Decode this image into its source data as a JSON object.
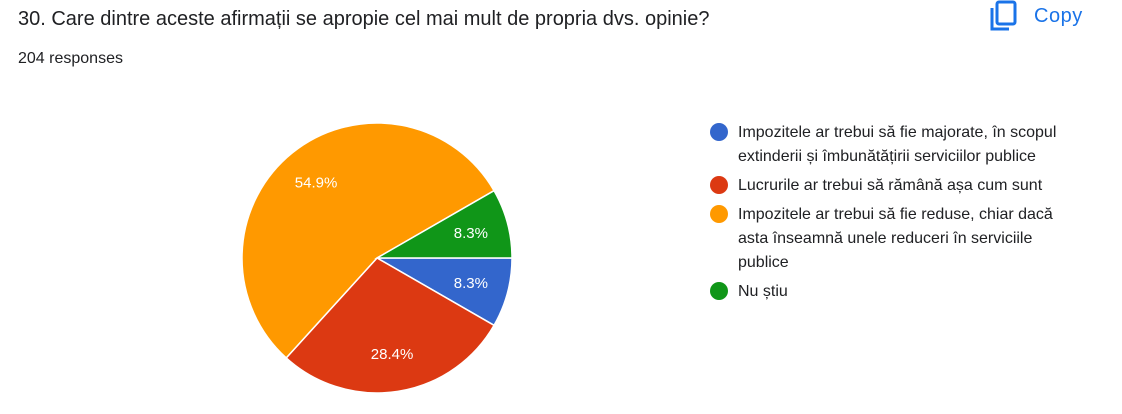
{
  "question": {
    "title": "30. Care dintre aceste afirmații se apropie cel mai mult de propria dvs. opinie?",
    "responses": "204 responses",
    "copy_label": "Copy",
    "copy_icon": "copy-icon"
  },
  "colors": {
    "accent": "#1a73e8"
  },
  "chart_data": {
    "type": "pie",
    "legend_position": "right",
    "slices": [
      {
        "label": "Impozitele ar trebui să fie majorate, în scopul extinderii și îmbunătățirii serviciilor publice",
        "value": 8.3,
        "display": "8.3%",
        "color": "#3366cc"
      },
      {
        "label": "Lucrurile ar trebui să rămână așa cum sunt",
        "value": 28.4,
        "display": "28.4%",
        "color": "#dc3912"
      },
      {
        "label": "Impozitele ar trebui să fie reduse, chiar dacă asta înseamnă unele reduceri în serviciile publice",
        "value": 54.9,
        "display": "54.9%",
        "color": "#ff9900"
      },
      {
        "label": "Nu știu",
        "value": 8.3,
        "display": "8.3%",
        "color": "#109618"
      }
    ]
  }
}
